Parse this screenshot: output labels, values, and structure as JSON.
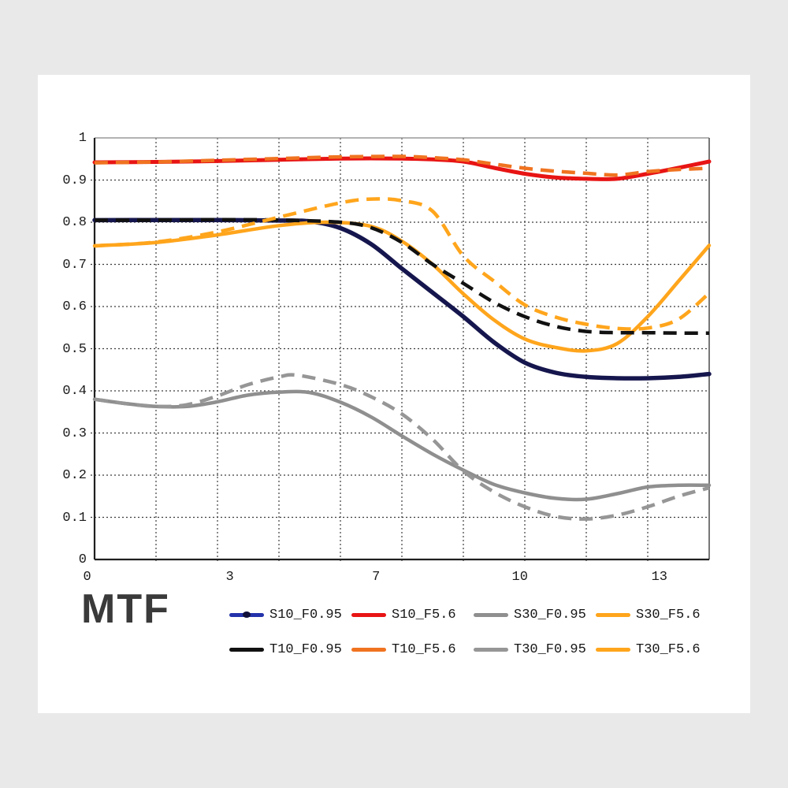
{
  "page": {
    "background": "#e9e9e9",
    "card_background": "#ffffff"
  },
  "chart_data": {
    "type": "line",
    "title": "MTF",
    "xlabel": "",
    "ylabel": "",
    "ylim": [
      0,
      1
    ],
    "grid": "on",
    "x_divisions": 10,
    "legend_position": "bottom",
    "legend_columns": 4,
    "yticks": [
      {
        "label": "1",
        "value": 1.0
      },
      {
        "label": "0.9",
        "value": 0.9
      },
      {
        "label": "0.8",
        "value": 0.8
      },
      {
        "label": "0.7",
        "value": 0.7
      },
      {
        "label": "0.6",
        "value": 0.6
      },
      {
        "label": "0.5",
        "value": 0.5
      },
      {
        "label": "0.4",
        "value": 0.4
      },
      {
        "label": "0.3",
        "value": 0.3
      },
      {
        "label": "0.2",
        "value": 0.2
      },
      {
        "label": "0.1",
        "value": 0.1
      },
      {
        "label": "0",
        "value": 0.0
      }
    ],
    "xticks": [
      {
        "label": "0",
        "pos": -1.2
      },
      {
        "label": "3",
        "pos": 22.0
      },
      {
        "label": "7",
        "pos": 45.8
      },
      {
        "label": "10",
        "pos": 69.2
      },
      {
        "label": "13",
        "pos": 91.9
      }
    ],
    "colors": {
      "grid": "#3c3c3c",
      "axis": "#1f1f1f",
      "border_top": "#9a9a9a",
      "border_right": "#555555"
    },
    "series": [
      {
        "name": "S10_F0.95",
        "color": "#16164e",
        "legend_color": "#2433ab",
        "legend_dot": "#10103a",
        "dash": "solid",
        "width": 5.5,
        "points": [
          [
            0,
            0.805
          ],
          [
            10,
            0.805
          ],
          [
            20,
            0.805
          ],
          [
            30,
            0.804
          ],
          [
            35,
            0.802
          ],
          [
            40,
            0.786
          ],
          [
            45,
            0.748
          ],
          [
            50,
            0.69
          ],
          [
            55,
            0.633
          ],
          [
            60,
            0.576
          ],
          [
            65,
            0.515
          ],
          [
            70,
            0.467
          ],
          [
            75,
            0.443
          ],
          [
            80,
            0.433
          ],
          [
            85,
            0.43
          ],
          [
            90,
            0.43
          ],
          [
            95,
            0.433
          ],
          [
            100,
            0.44
          ]
        ]
      },
      {
        "name": "S10_F5.6",
        "color": "#e81414",
        "legend_color": "#e81414",
        "dash": "solid",
        "width": 5,
        "points": [
          [
            0,
            0.942
          ],
          [
            10,
            0.943
          ],
          [
            20,
            0.945
          ],
          [
            30,
            0.948
          ],
          [
            40,
            0.951
          ],
          [
            50,
            0.951
          ],
          [
            55,
            0.949
          ],
          [
            60,
            0.944
          ],
          [
            65,
            0.929
          ],
          [
            70,
            0.915
          ],
          [
            75,
            0.906
          ],
          [
            80,
            0.903
          ],
          [
            85,
            0.903
          ],
          [
            90,
            0.915
          ],
          [
            95,
            0.929
          ],
          [
            100,
            0.944
          ]
        ]
      },
      {
        "name": "S30_F0.95",
        "color": "#8f8f8f",
        "legend_color": "#8f8f8f",
        "dash": "solid",
        "width": 4.5,
        "points": [
          [
            0,
            0.38
          ],
          [
            5,
            0.37
          ],
          [
            10,
            0.363
          ],
          [
            15,
            0.363
          ],
          [
            20,
            0.374
          ],
          [
            25,
            0.39
          ],
          [
            30,
            0.397
          ],
          [
            35,
            0.396
          ],
          [
            40,
            0.373
          ],
          [
            45,
            0.338
          ],
          [
            50,
            0.293
          ],
          [
            55,
            0.25
          ],
          [
            60,
            0.212
          ],
          [
            65,
            0.178
          ],
          [
            70,
            0.158
          ],
          [
            75,
            0.145
          ],
          [
            80,
            0.143
          ],
          [
            85,
            0.156
          ],
          [
            90,
            0.172
          ],
          [
            95,
            0.176
          ],
          [
            100,
            0.176
          ]
        ]
      },
      {
        "name": "S30_F5.6",
        "color": "#ffa51c",
        "legend_color": "#ffa51c",
        "dash": "solid",
        "width": 4.5,
        "points": [
          [
            0,
            0.744
          ],
          [
            10,
            0.752
          ],
          [
            20,
            0.77
          ],
          [
            30,
            0.792
          ],
          [
            38,
            0.8
          ],
          [
            45,
            0.79
          ],
          [
            50,
            0.755
          ],
          [
            55,
            0.7
          ],
          [
            60,
            0.63
          ],
          [
            65,
            0.568
          ],
          [
            70,
            0.523
          ],
          [
            75,
            0.503
          ],
          [
            80,
            0.495
          ],
          [
            85,
            0.512
          ],
          [
            90,
            0.576
          ],
          [
            95,
            0.66
          ],
          [
            100,
            0.745
          ]
        ]
      },
      {
        "name": "T10_F0.95",
        "color": "#111111",
        "legend_color": "#111111",
        "dash": "dashed",
        "width": 4.5,
        "points": [
          [
            0,
            0.805
          ],
          [
            10,
            0.805
          ],
          [
            20,
            0.806
          ],
          [
            30,
            0.805
          ],
          [
            40,
            0.8
          ],
          [
            45,
            0.787
          ],
          [
            50,
            0.752
          ],
          [
            55,
            0.7
          ],
          [
            60,
            0.655
          ],
          [
            65,
            0.61
          ],
          [
            70,
            0.576
          ],
          [
            75,
            0.553
          ],
          [
            80,
            0.541
          ],
          [
            85,
            0.538
          ],
          [
            90,
            0.538
          ],
          [
            95,
            0.537
          ],
          [
            100,
            0.537
          ]
        ]
      },
      {
        "name": "T10_F5.6",
        "color": "#f07320",
        "legend_color": "#f07320",
        "dash": "dashed",
        "width": 4.5,
        "points": [
          [
            0,
            0.941
          ],
          [
            10,
            0.943
          ],
          [
            20,
            0.947
          ],
          [
            30,
            0.951
          ],
          [
            40,
            0.955
          ],
          [
            50,
            0.956
          ],
          [
            55,
            0.953
          ],
          [
            60,
            0.948
          ],
          [
            65,
            0.938
          ],
          [
            70,
            0.928
          ],
          [
            75,
            0.921
          ],
          [
            80,
            0.916
          ],
          [
            85,
            0.912
          ],
          [
            90,
            0.92
          ],
          [
            95,
            0.925
          ],
          [
            100,
            0.928
          ]
        ]
      },
      {
        "name": "T30_F0.95",
        "color": "#969696",
        "legend_color": "#969696",
        "dash": "dashed",
        "width": 4.5,
        "points": [
          [
            0,
            0.38
          ],
          [
            5,
            0.37
          ],
          [
            10,
            0.363
          ],
          [
            15,
            0.367
          ],
          [
            20,
            0.388
          ],
          [
            25,
            0.415
          ],
          [
            30,
            0.433
          ],
          [
            33,
            0.437
          ],
          [
            40,
            0.415
          ],
          [
            45,
            0.386
          ],
          [
            50,
            0.345
          ],
          [
            55,
            0.285
          ],
          [
            60,
            0.21
          ],
          [
            65,
            0.16
          ],
          [
            70,
            0.125
          ],
          [
            75,
            0.102
          ],
          [
            80,
            0.096
          ],
          [
            85,
            0.105
          ],
          [
            90,
            0.125
          ],
          [
            95,
            0.15
          ],
          [
            100,
            0.17
          ]
        ]
      },
      {
        "name": "T30_F5.6",
        "color": "#ffa51c",
        "legend_color": "#ffa51c",
        "dash": "dashed",
        "width": 4.5,
        "points": [
          [
            0,
            0.744
          ],
          [
            10,
            0.753
          ],
          [
            20,
            0.777
          ],
          [
            30,
            0.812
          ],
          [
            40,
            0.846
          ],
          [
            45,
            0.855
          ],
          [
            50,
            0.851
          ],
          [
            55,
            0.826
          ],
          [
            60,
            0.72
          ],
          [
            65,
            0.66
          ],
          [
            70,
            0.604
          ],
          [
            75,
            0.575
          ],
          [
            80,
            0.558
          ],
          [
            85,
            0.548
          ],
          [
            90,
            0.549
          ],
          [
            95,
            0.57
          ],
          [
            100,
            0.632
          ]
        ]
      }
    ]
  }
}
